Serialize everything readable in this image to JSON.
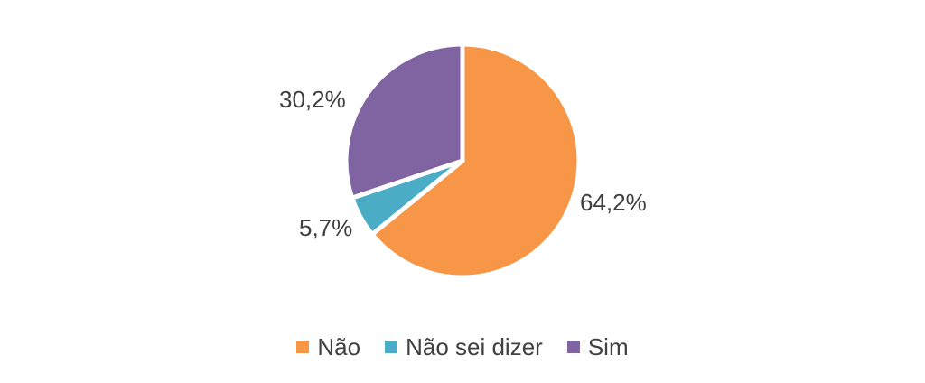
{
  "chart_data": {
    "type": "pie",
    "title": "",
    "categories": [
      "Não",
      "Não sei dizer",
      "Sim"
    ],
    "values": [
      64.2,
      5.7,
      30.2
    ],
    "slices": [
      {
        "label": "Não",
        "value": 64.2,
        "display": "64,2%",
        "color": "#F79646"
      },
      {
        "label": "Não sei dizer",
        "value": 5.7,
        "display": "5,7%",
        "color": "#4BACC6"
      },
      {
        "label": "Sim",
        "value": 30.2,
        "display": "30,2%",
        "color": "#8064A2"
      }
    ],
    "start_angle_deg": 0,
    "direction": "clockwise",
    "separator_color": "#FFFFFF",
    "data_label_color": "#404040",
    "legend_position": "bottom",
    "background": "#FFFFFF"
  }
}
